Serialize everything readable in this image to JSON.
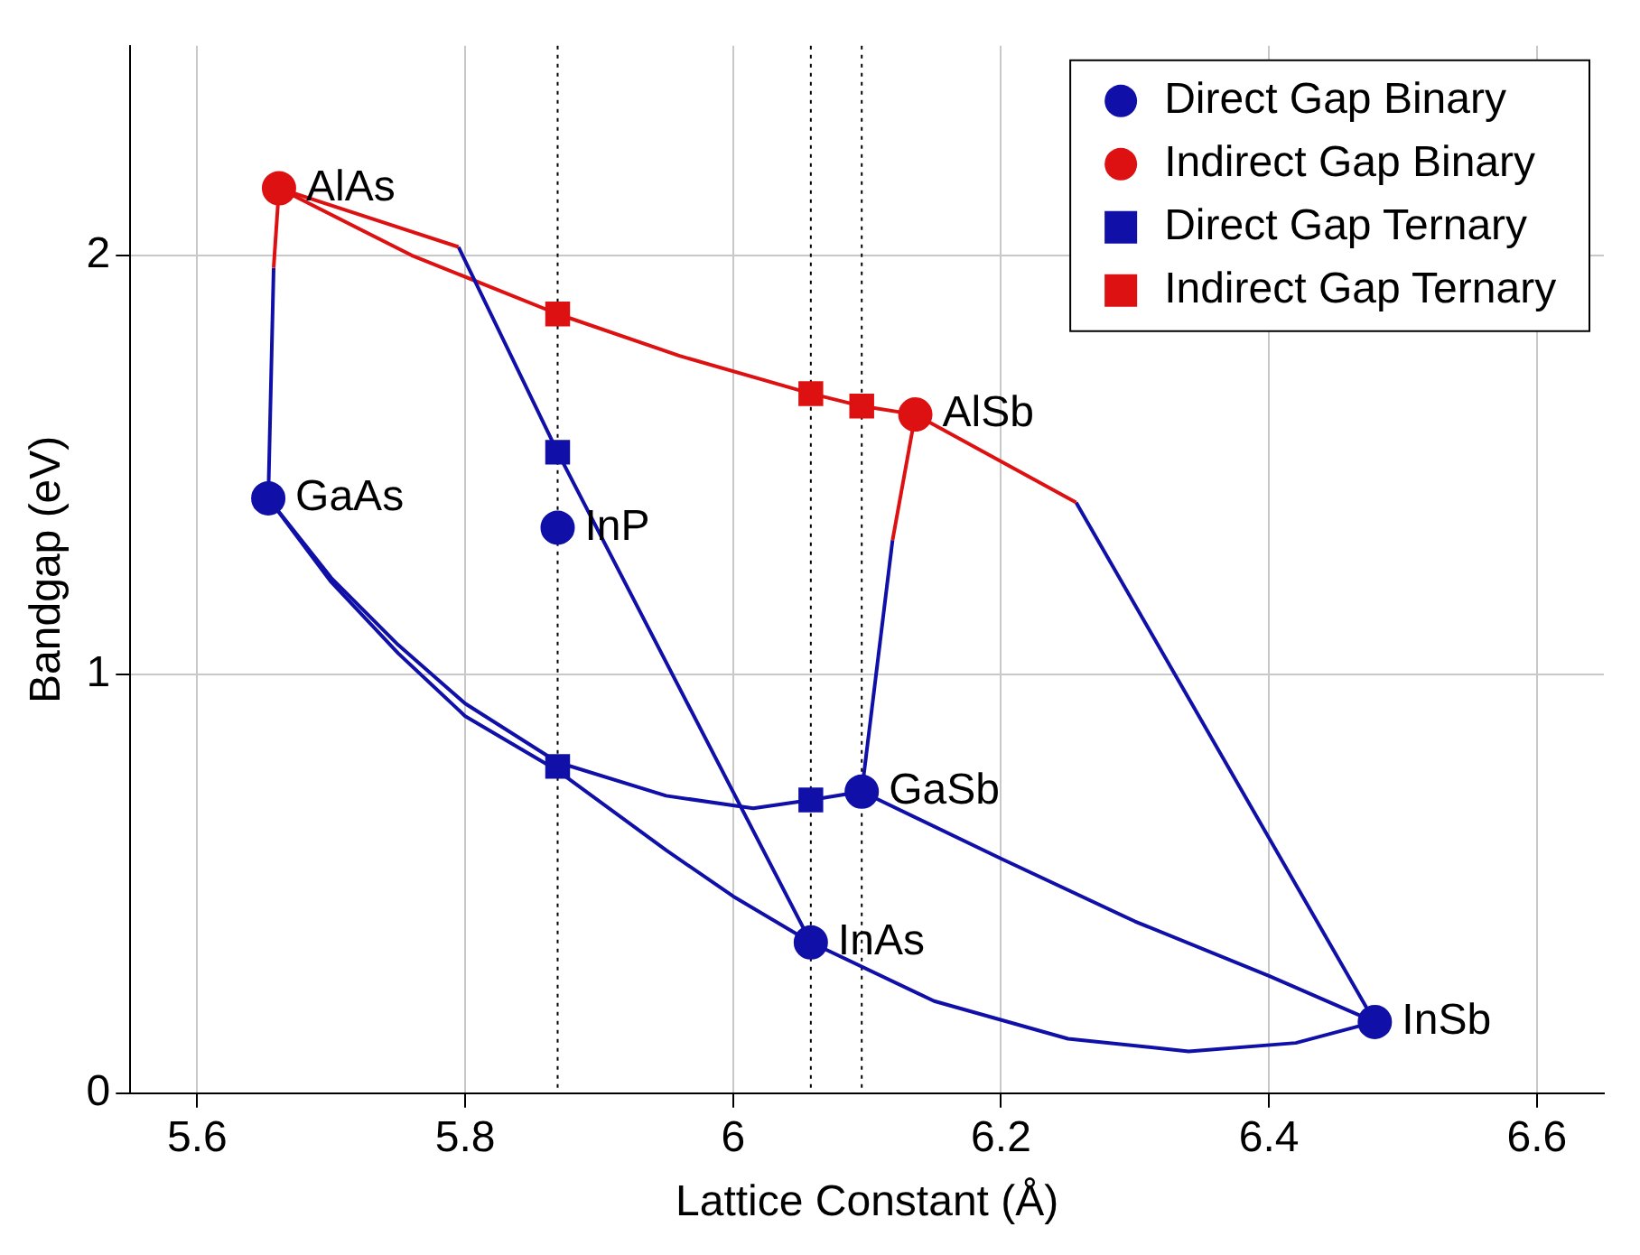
{
  "chart_data": {
    "type": "scatter",
    "xlabel": "Lattice Constant (Å)",
    "ylabel": "Bandgap (eV)",
    "xlim": [
      5.55,
      6.65
    ],
    "ylim": [
      0,
      2.5
    ],
    "xticks": [
      5.6,
      5.8,
      6,
      6.2,
      6.4,
      6.6
    ],
    "yticks": [
      0,
      1,
      2
    ],
    "grid": true,
    "legend": "top right",
    "series": [
      {
        "type": "line",
        "marker": "none",
        "color": "#dd1111",
        "x": [
          5.661,
          5.657
        ],
        "values": [
          2.16,
          1.97
        ]
      },
      {
        "type": "line",
        "marker": "none",
        "color": "#1010a8",
        "x": [
          5.657,
          5.653
        ],
        "values": [
          1.97,
          1.42
        ]
      },
      {
        "type": "line",
        "marker": "none",
        "color": "#dd1111",
        "x": [
          5.661,
          5.795
        ],
        "values": [
          2.16,
          2.02
        ]
      },
      {
        "type": "line",
        "marker": "none",
        "color": "#1010a8",
        "x": [
          5.795,
          5.869,
          6.058
        ],
        "values": [
          2.02,
          1.53,
          0.36
        ]
      },
      {
        "type": "line",
        "marker": "none",
        "color": "#dd1111",
        "x": [
          5.661,
          5.76,
          5.869,
          5.96,
          6.058,
          6.096,
          6.136
        ],
        "values": [
          2.16,
          2.0,
          1.86,
          1.76,
          1.67,
          1.64,
          1.62
        ]
      },
      {
        "type": "line",
        "marker": "none",
        "color": "#dd1111",
        "x": [
          6.136,
          6.119
        ],
        "values": [
          1.62,
          1.32
        ]
      },
      {
        "type": "line",
        "marker": "none",
        "color": "#1010a8",
        "x": [
          6.119,
          6.096
        ],
        "values": [
          1.32,
          0.72
        ]
      },
      {
        "type": "line",
        "marker": "none",
        "color": "#dd1111",
        "x": [
          6.136,
          6.256
        ],
        "values": [
          1.62,
          1.41
        ]
      },
      {
        "type": "line",
        "marker": "none",
        "color": "#1010a8",
        "x": [
          6.256,
          6.479
        ],
        "values": [
          1.41,
          0.17
        ]
      },
      {
        "type": "line",
        "marker": "none",
        "color": "#1010a8",
        "x": [
          5.653,
          5.7,
          5.75,
          5.8,
          5.869,
          5.95,
          6.0,
          6.058
        ],
        "values": [
          1.42,
          1.22,
          1.05,
          0.9,
          0.77,
          0.58,
          0.47,
          0.36
        ]
      },
      {
        "type": "line",
        "marker": "none",
        "color": "#1010a8",
        "x": [
          5.653,
          5.7,
          5.75,
          5.8,
          5.869,
          5.95,
          6.015,
          6.058,
          6.096
        ],
        "values": [
          1.42,
          1.23,
          1.07,
          0.93,
          0.79,
          0.71,
          0.68,
          0.7,
          0.72
        ]
      },
      {
        "type": "line",
        "marker": "none",
        "color": "#1010a8",
        "x": [
          6.096,
          6.2,
          6.3,
          6.4,
          6.479
        ],
        "values": [
          0.72,
          0.56,
          0.41,
          0.28,
          0.17
        ]
      },
      {
        "type": "line",
        "marker": "none",
        "color": "#1010a8",
        "x": [
          6.058,
          6.15,
          6.25,
          6.34,
          6.42,
          6.479
        ],
        "values": [
          0.36,
          0.22,
          0.13,
          0.1,
          0.12,
          0.17
        ]
      },
      {
        "type": "scatter",
        "marker": "circle",
        "name": "Direct Gap Binary",
        "color": "#1010a8",
        "x": [
          5.653,
          5.869,
          6.096,
          6.058,
          6.479
        ],
        "values": [
          1.42,
          1.35,
          0.72,
          0.36,
          0.17
        ]
      },
      {
        "type": "scatter",
        "marker": "circle",
        "name": "Indirect Gap Binary",
        "color": "#dd1111",
        "x": [
          5.661,
          6.136
        ],
        "values": [
          2.16,
          1.62
        ]
      },
      {
        "type": "scatter",
        "marker": "square",
        "name": "Direct Gap Ternary",
        "color": "#1010a8",
        "x": [
          5.869,
          5.869,
          6.058
        ],
        "values": [
          1.53,
          0.78,
          0.7
        ]
      },
      {
        "type": "scatter",
        "marker": "square",
        "name": "Indirect Gap Ternary",
        "color": "#dd1111",
        "x": [
          5.869,
          6.058,
          6.096
        ],
        "values": [
          1.86,
          1.67,
          1.64
        ]
      }
    ],
    "ref_lines": [
      {
        "axis": "x",
        "value": 5.869,
        "line_style": "dotted",
        "color": "#000000"
      },
      {
        "axis": "x",
        "value": 6.058,
        "line_style": "dotted",
        "color": "#000000"
      },
      {
        "axis": "x",
        "value": 6.096,
        "line_style": "dotted",
        "color": "#000000"
      }
    ],
    "annotations": [
      {
        "text": "AlAs",
        "x": 5.661,
        "y": 2.16
      },
      {
        "text": "GaAs",
        "x": 5.653,
        "y": 1.42
      },
      {
        "text": "InP",
        "x": 5.869,
        "y": 1.35
      },
      {
        "text": "AlSb",
        "x": 6.136,
        "y": 1.62
      },
      {
        "text": "GaSb",
        "x": 6.096,
        "y": 0.72
      },
      {
        "text": "InAs",
        "x": 6.058,
        "y": 0.36
      },
      {
        "text": "InSb",
        "x": 6.479,
        "y": 0.17
      }
    ]
  }
}
